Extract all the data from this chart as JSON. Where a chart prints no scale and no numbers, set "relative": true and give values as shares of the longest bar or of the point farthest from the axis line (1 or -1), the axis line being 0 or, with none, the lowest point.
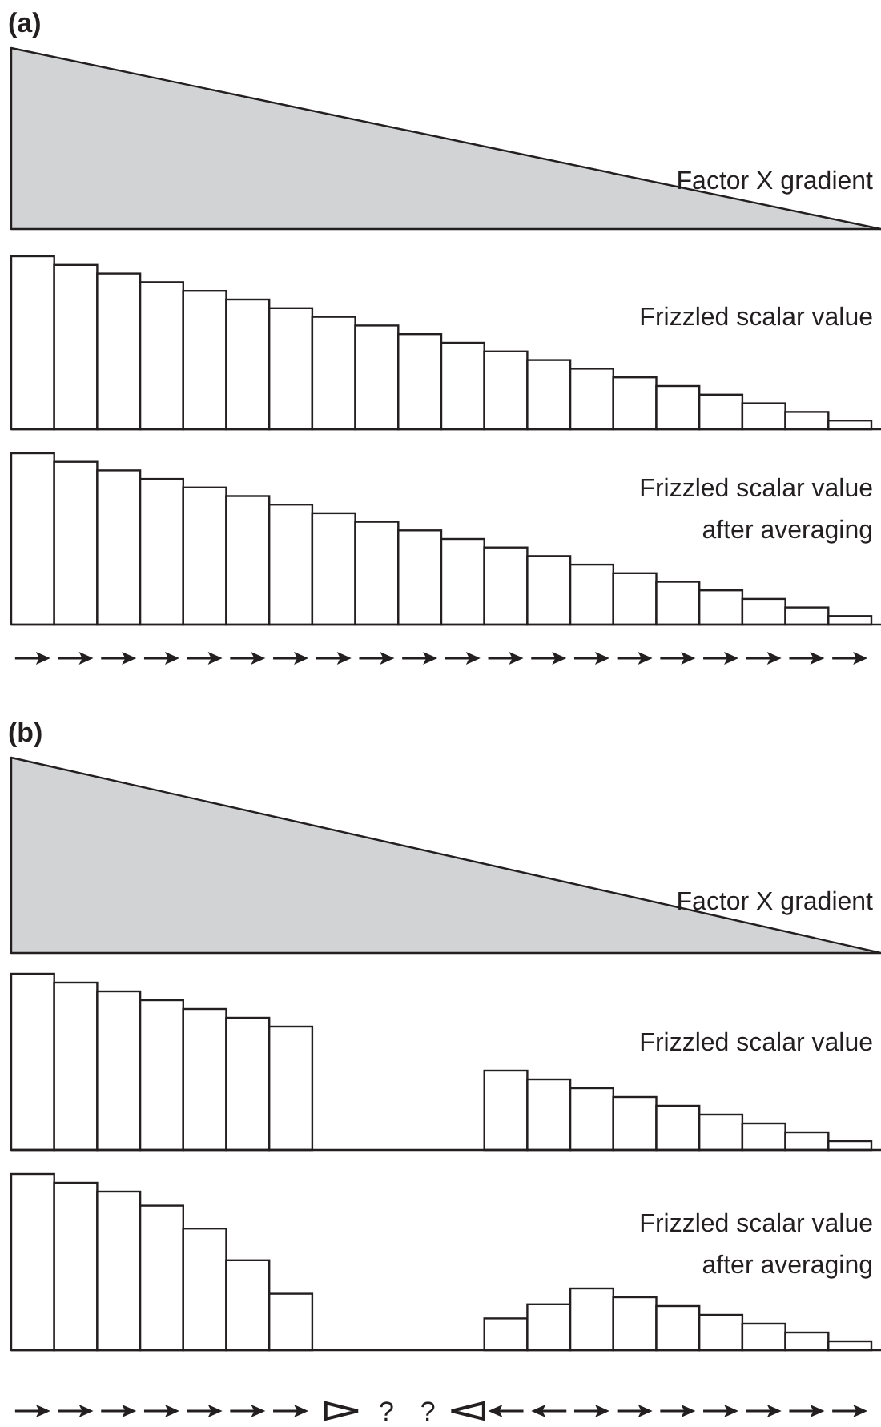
{
  "chart_data": [
    {
      "type": "area",
      "title": "(a)",
      "annotations": [
        "Factor X gradient"
      ],
      "categories": [
        null,
        null
      ],
      "values": [
        1,
        0
      ],
      "relative": true,
      "color": "#d1d3d4"
    },
    {
      "type": "bar",
      "annotations": [
        "Frizzled scalar value"
      ],
      "categories": [
        null,
        null,
        null,
        null,
        null,
        null,
        null,
        null,
        null,
        null,
        null,
        null,
        null,
        null,
        null,
        null,
        null,
        null,
        null,
        null
      ],
      "values": [
        1,
        0.95,
        0.9,
        0.85,
        0.8,
        0.75,
        0.7,
        0.65,
        0.6,
        0.55,
        0.5,
        0.45,
        0.4,
        0.35,
        0.3,
        0.25,
        0.2,
        0.15,
        0.1,
        0.05
      ],
      "relative": true,
      "color": "#ffffff"
    },
    {
      "type": "bar",
      "annotations": [
        "Frizzled scalar value",
        "after averaging"
      ],
      "categories": [
        null,
        null,
        null,
        null,
        null,
        null,
        null,
        null,
        null,
        null,
        null,
        null,
        null,
        null,
        null,
        null,
        null,
        null,
        null,
        null
      ],
      "values": [
        1,
        0.95,
        0.9,
        0.85,
        0.8,
        0.75,
        0.7,
        0.65,
        0.6,
        0.55,
        0.5,
        0.45,
        0.4,
        0.35,
        0.3,
        0.25,
        0.2,
        0.15,
        0.1,
        0.05
      ],
      "relative": true,
      "color": "#ffffff"
    },
    {
      "type": "area",
      "title": "(b)",
      "annotations": [
        "Factor X gradient"
      ],
      "categories": [
        null,
        null
      ],
      "values": [
        1,
        0
      ],
      "relative": true,
      "color": "#d1d3d4"
    },
    {
      "type": "bar",
      "annotations": [
        "Frizzled scalar value"
      ],
      "categories": [
        null,
        null,
        null,
        null,
        null,
        null,
        null,
        null,
        null,
        null,
        null,
        null,
        null,
        null,
        null,
        null,
        null,
        null,
        null,
        null
      ],
      "values": [
        1,
        0.95,
        0.9,
        0.85,
        0.8,
        0.75,
        0.7,
        null,
        0,
        0,
        null,
        0.45,
        0.4,
        0.35,
        0.3,
        0.25,
        0.2,
        0.15,
        0.1,
        0.05
      ],
      "relative": true,
      "color": "#ffffff"
    },
    {
      "type": "bar",
      "annotations": [
        "Frizzled scalar value",
        "after averaging",
        "?",
        "?"
      ],
      "categories": [
        null,
        null,
        null,
        null,
        null,
        null,
        null,
        null,
        null,
        null,
        null,
        null,
        null,
        null,
        null,
        null,
        null,
        null,
        null,
        null
      ],
      "values": [
        1,
        0.95,
        0.9,
        0.82,
        0.69,
        0.51,
        0.32,
        null,
        0,
        0,
        null,
        0.18,
        0.26,
        0.35,
        0.3,
        0.25,
        0.2,
        0.15,
        0.1,
        0.05
      ],
      "relative": true,
      "color": "#ffffff"
    }
  ]
}
